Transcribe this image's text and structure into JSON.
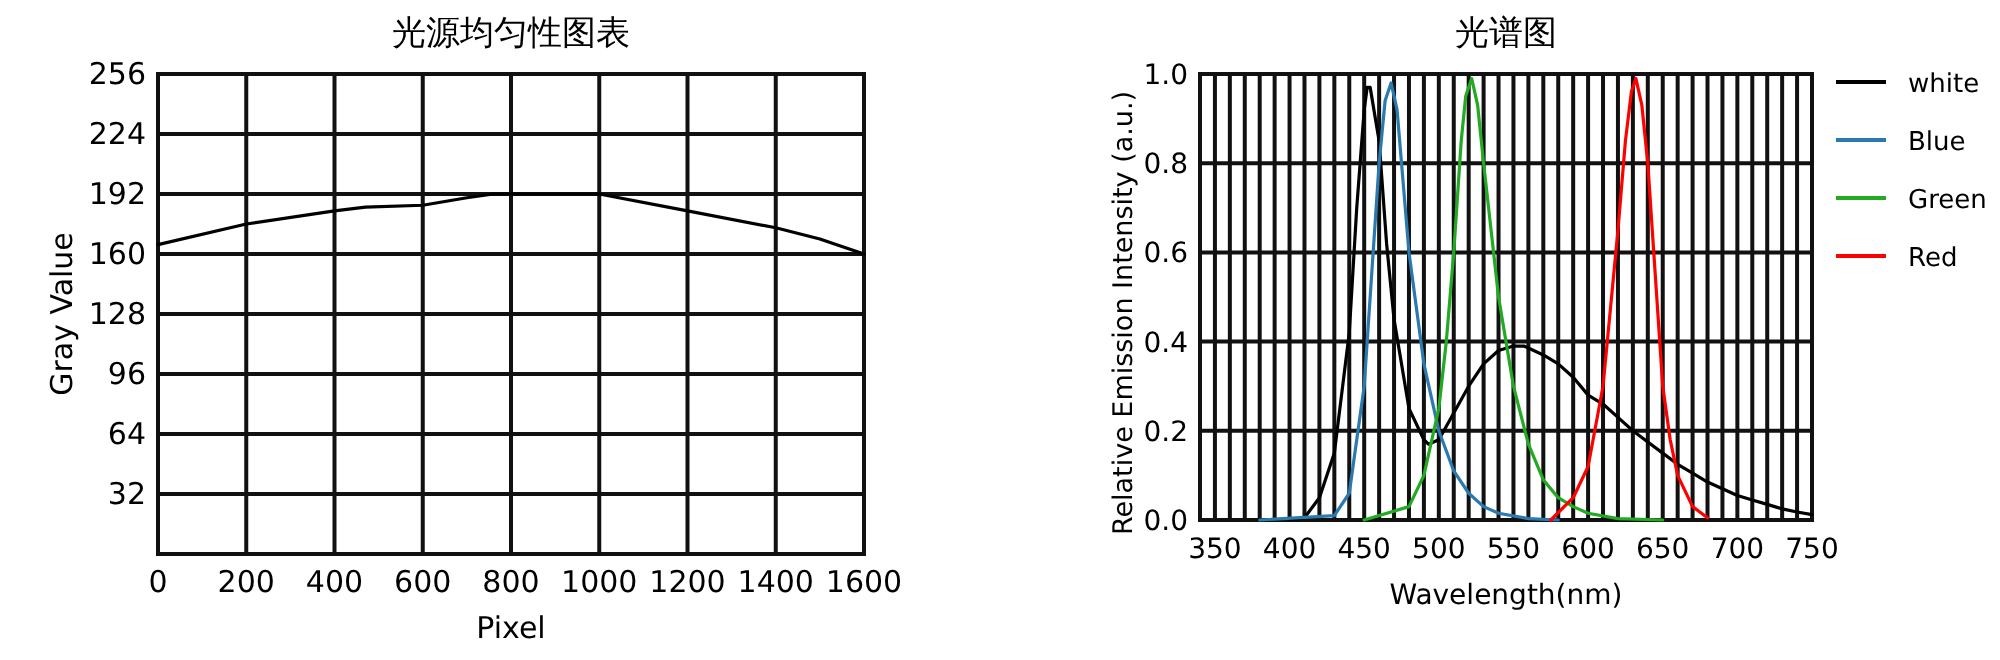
{
  "chart_data": [
    {
      "type": "line",
      "title": "光源均匀性图表",
      "xlabel": "Pixel",
      "ylabel": "Gray Value",
      "xlim": [
        0,
        1600
      ],
      "ylim": [
        0,
        256
      ],
      "xticks": [
        0,
        200,
        400,
        600,
        800,
        1000,
        1200,
        1400,
        1600
      ],
      "yticks": [
        {
          "value": 0,
          "label": null
        },
        32,
        64,
        96,
        128,
        160,
        192,
        224,
        256
      ],
      "grid": true,
      "series": [
        {
          "color": "#000000",
          "x": [
            0,
            200,
            400,
            470,
            600,
            700,
            760,
            1000,
            1200,
            1400,
            1500,
            1600
          ],
          "values": [
            165,
            176,
            183,
            185,
            186,
            190,
            192,
            192,
            183,
            174,
            168,
            160
          ]
        }
      ]
    },
    {
      "type": "line",
      "title": "光谱图",
      "xlabel": "Wavelength(nm)",
      "ylabel": "Relative Emission Intensity (a.u.)",
      "xlim": [
        340,
        750
      ],
      "ylim": [
        0,
        1
      ],
      "xticks": [
        {
          "value": 340,
          "label": null
        },
        350,
        {
          "value": 360,
          "label": null
        },
        {
          "value": 370,
          "label": null
        },
        {
          "value": 380,
          "label": null
        },
        {
          "value": 390,
          "label": null
        },
        400,
        {
          "value": 410,
          "label": null
        },
        {
          "value": 420,
          "label": null
        },
        {
          "value": 430,
          "label": null
        },
        {
          "value": 440,
          "label": null
        },
        450,
        {
          "value": 460,
          "label": null
        },
        {
          "value": 470,
          "label": null
        },
        {
          "value": 480,
          "label": null
        },
        {
          "value": 490,
          "label": null
        },
        500,
        {
          "value": 510,
          "label": null
        },
        {
          "value": 520,
          "label": null
        },
        {
          "value": 530,
          "label": null
        },
        {
          "value": 540,
          "label": null
        },
        550,
        {
          "value": 560,
          "label": null
        },
        {
          "value": 570,
          "label": null
        },
        {
          "value": 580,
          "label": null
        },
        {
          "value": 590,
          "label": null
        },
        600,
        {
          "value": 610,
          "label": null
        },
        {
          "value": 620,
          "label": null
        },
        {
          "value": 630,
          "label": null
        },
        {
          "value": 640,
          "label": null
        },
        650,
        {
          "value": 660,
          "label": null
        },
        {
          "value": 670,
          "label": null
        },
        {
          "value": 680,
          "label": null
        },
        {
          "value": 690,
          "label": null
        },
        700,
        {
          "value": 710,
          "label": null
        },
        {
          "value": 720,
          "label": null
        },
        {
          "value": 730,
          "label": null
        },
        {
          "value": 740,
          "label": null
        },
        750
      ],
      "yticks": [
        {
          "value": 0,
          "label": "0.0"
        },
        {
          "value": 0.2,
          "label": "0.2"
        },
        {
          "value": 0.4,
          "label": "0.4"
        },
        {
          "value": 0.6,
          "label": "0.6"
        },
        {
          "value": 0.8,
          "label": "0.8"
        },
        {
          "value": 1,
          "label": "1.0"
        }
      ],
      "grid": true,
      "legend": "top right",
      "series": [
        {
          "name": "white",
          "color": "#000000",
          "x": [
            400,
            410,
            420,
            430,
            440,
            445,
            450,
            452,
            454,
            460,
            465,
            470,
            480,
            490,
            493,
            500,
            510,
            520,
            530,
            540,
            550,
            557,
            570,
            580,
            590,
            600,
            610,
            620,
            630,
            640,
            650,
            660,
            670,
            680,
            690,
            700,
            710,
            720,
            730,
            740,
            750
          ],
          "values": [
            0,
            0.005,
            0.05,
            0.15,
            0.42,
            0.7,
            0.92,
            0.97,
            0.97,
            0.85,
            0.62,
            0.45,
            0.25,
            0.18,
            0.17,
            0.18,
            0.24,
            0.3,
            0.35,
            0.38,
            0.39,
            0.39,
            0.37,
            0.35,
            0.32,
            0.28,
            0.26,
            0.23,
            0.2,
            0.175,
            0.15,
            0.125,
            0.105,
            0.085,
            0.07,
            0.055,
            0.045,
            0.035,
            0.025,
            0.018,
            0.012
          ]
        },
        {
          "name": "Blue",
          "color": "#2a7ab0",
          "x": [
            380,
            430,
            440,
            450,
            455,
            460,
            464,
            468,
            472,
            475,
            480,
            490,
            500,
            510,
            520,
            530,
            540,
            560,
            580
          ],
          "values": [
            0,
            0.01,
            0.06,
            0.3,
            0.55,
            0.8,
            0.94,
            0.98,
            0.92,
            0.8,
            0.6,
            0.35,
            0.2,
            0.11,
            0.06,
            0.03,
            0.015,
            0.003,
            0
          ]
        },
        {
          "name": "Green",
          "color": "#22aa22",
          "x": [
            450,
            480,
            490,
            500,
            505,
            510,
            515,
            518,
            522,
            526,
            530,
            540,
            550,
            560,
            570,
            580,
            590,
            600,
            620,
            650
          ],
          "values": [
            0,
            0.03,
            0.1,
            0.25,
            0.4,
            0.6,
            0.85,
            0.95,
            0.99,
            0.93,
            0.8,
            0.5,
            0.3,
            0.17,
            0.09,
            0.05,
            0.03,
            0.015,
            0.003,
            0
          ]
        },
        {
          "name": "Red",
          "color": "#ff0000",
          "x": [
            575,
            590,
            600,
            610,
            620,
            625,
            629,
            632,
            636,
            640,
            645,
            650,
            655,
            660,
            670,
            680
          ],
          "values": [
            0,
            0.05,
            0.12,
            0.3,
            0.65,
            0.85,
            0.96,
            0.99,
            0.93,
            0.8,
            0.55,
            0.3,
            0.18,
            0.1,
            0.03,
            0.005
          ]
        }
      ]
    }
  ]
}
